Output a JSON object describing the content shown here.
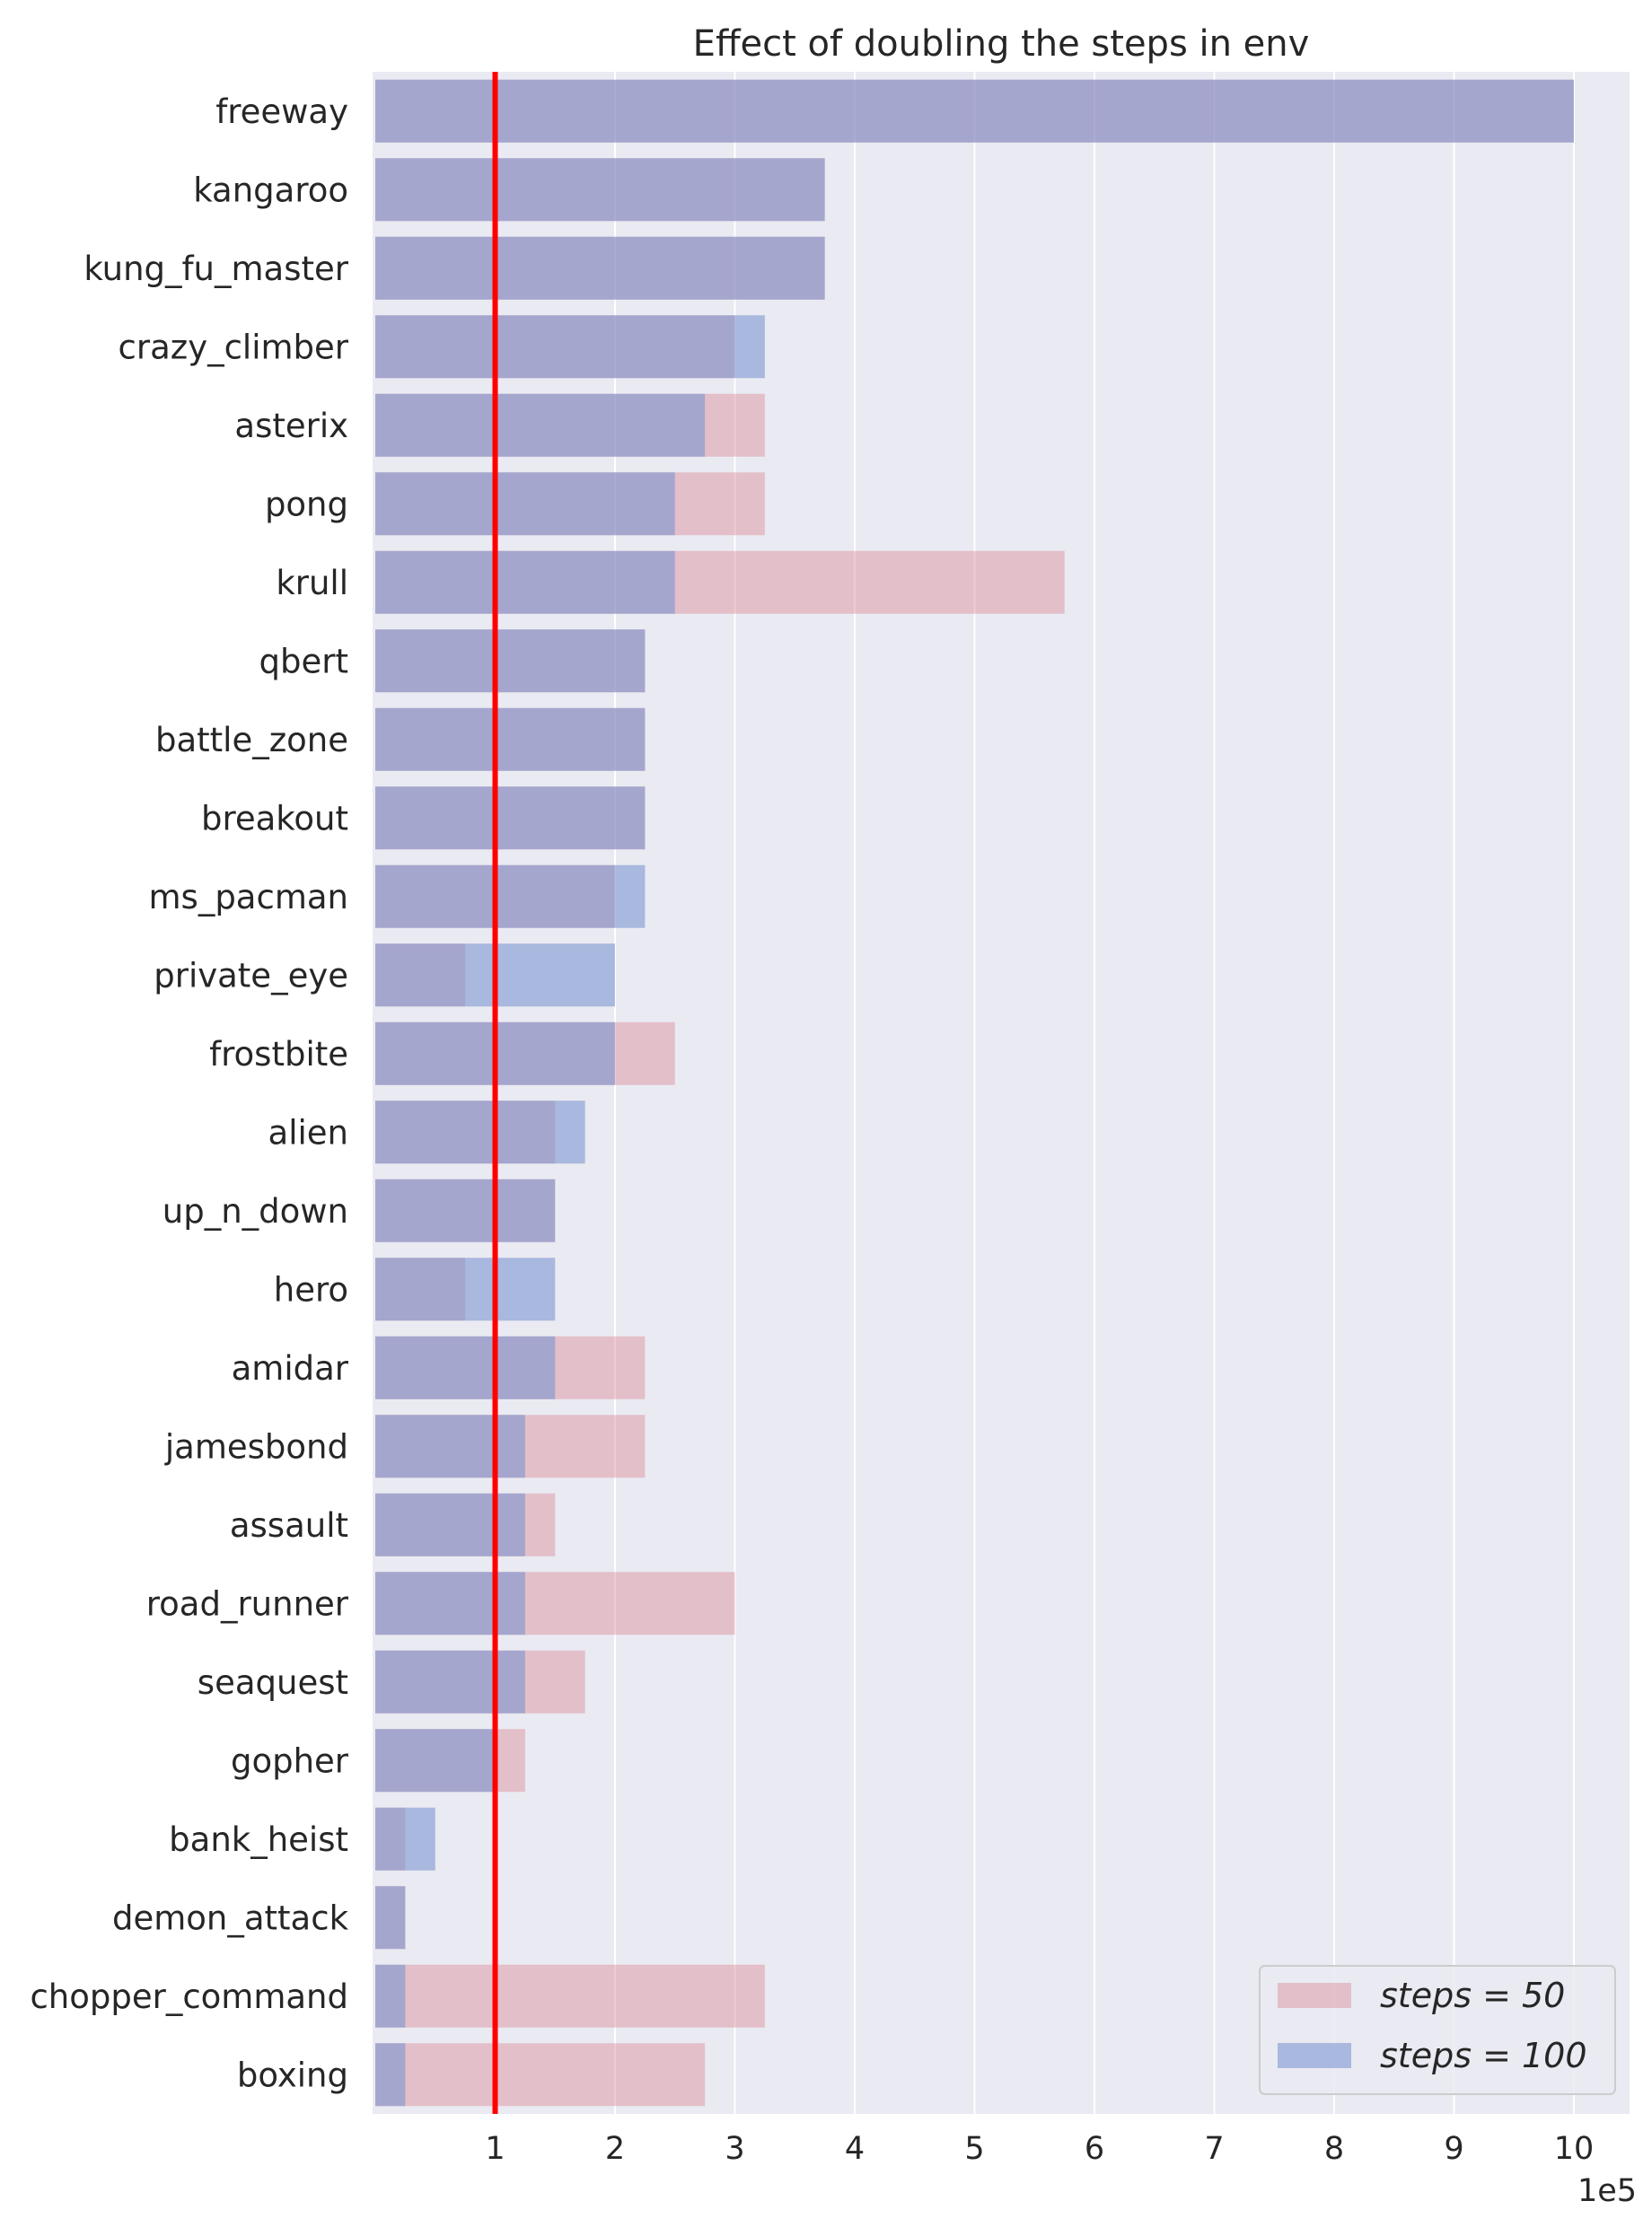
{
  "chart_data": {
    "type": "bar",
    "orientation": "horizontal",
    "title": "Effect of doubling the steps in env",
    "xlabel": "",
    "ylabel": "",
    "x_offset_label": "1e5",
    "xlim": [
      0,
      10.5
    ],
    "xticks": [
      1,
      2,
      3,
      4,
      5,
      6,
      7,
      8,
      9,
      10
    ],
    "grid": true,
    "legend_position": "bottom-right",
    "reference_line": {
      "x": 1,
      "color": "#ff0000"
    },
    "categories": [
      "freeway",
      "kangaroo",
      "kung_fu_master",
      "crazy_climber",
      "asterix",
      "pong",
      "krull",
      "qbert",
      "battle_zone",
      "breakout",
      "ms_pacman",
      "private_eye",
      "frostbite",
      "alien",
      "up_n_down",
      "hero",
      "amidar",
      "jamesbond",
      "assault",
      "road_runner",
      "seaquest",
      "gopher",
      "bank_heist",
      "demon_attack",
      "chopper_command",
      "boxing"
    ],
    "series": [
      {
        "name": "steps = 50",
        "legend_label": "steps = 50",
        "color": "#dc8c96",
        "opacity": 0.45,
        "values": [
          10,
          3.75,
          3.75,
          3.0,
          3.25,
          3.25,
          5.75,
          2.25,
          2.25,
          2.25,
          2.0,
          0.75,
          2.5,
          1.5,
          1.5,
          0.75,
          2.25,
          2.25,
          1.5,
          3.0,
          1.75,
          1.25,
          0.25,
          0.25,
          3.25,
          2.75
        ]
      },
      {
        "name": "steps = 100",
        "legend_label": "steps = 100",
        "color": "#7b96d0",
        "opacity": 0.6,
        "values": [
          10,
          3.75,
          3.75,
          3.25,
          2.75,
          2.5,
          2.5,
          2.25,
          2.25,
          2.25,
          2.25,
          2.0,
          2.0,
          1.75,
          1.5,
          1.5,
          1.5,
          1.25,
          1.25,
          1.25,
          1.25,
          1.0,
          0.5,
          0.25,
          0.25,
          0.25
        ]
      }
    ]
  },
  "colors": {
    "plot_background": "#eaeaf2",
    "grid": "#ffffff",
    "text": "#262626"
  }
}
